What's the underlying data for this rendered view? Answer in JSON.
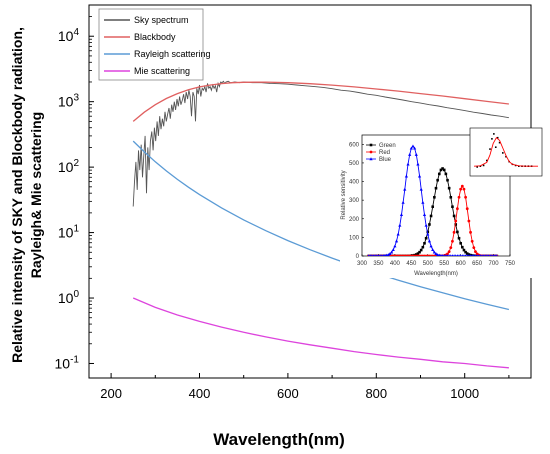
{
  "chart_data": [
    {
      "type": "line",
      "xlabel": "Wavelength(nm)",
      "ylabel_lines": [
        "Relative intensity of SKY and Blockbody radiation,",
        "Rayleigh& Mie scattering"
      ],
      "xlim": [
        150,
        1150
      ],
      "ylim": [
        0.06,
        30000
      ],
      "yscale": "log",
      "xticks": [
        "200",
        "400",
        "600",
        "800",
        "1000"
      ],
      "xtick_values": [
        200,
        400,
        600,
        800,
        1000
      ],
      "yticks": [
        {
          "base": "10",
          "exp": "-1",
          "value": 0.1
        },
        {
          "base": "10",
          "exp": "0",
          "value": 1
        },
        {
          "base": "10",
          "exp": "1",
          "value": 10
        },
        {
          "base": "10",
          "exp": "2",
          "value": 100
        },
        {
          "base": "10",
          "exp": "3",
          "value": 1000
        },
        {
          "base": "10",
          "exp": "4",
          "value": 10000
        }
      ],
      "legend_position": "top-left",
      "series": [
        {
          "name": "Sky spectrum",
          "color": "#555555",
          "x": [
            250,
            253,
            256,
            259,
            262,
            265,
            268,
            271,
            274,
            277,
            280,
            283,
            286,
            289,
            292,
            295,
            298,
            301,
            304,
            307,
            310,
            313,
            316,
            319,
            322,
            325,
            328,
            331,
            334,
            337,
            340,
            343,
            346,
            349,
            352,
            355,
            358,
            361,
            364,
            367,
            370,
            373,
            376,
            379,
            382,
            385,
            388,
            391,
            394,
            397,
            400,
            403,
            406,
            409,
            412,
            415,
            418,
            421,
            424,
            427,
            430,
            433,
            436,
            439,
            442,
            445,
            448,
            451,
            454,
            457,
            460,
            465,
            470,
            480,
            490,
            500,
            520,
            540,
            560,
            580,
            600,
            620,
            640,
            660,
            680,
            700,
            720,
            740,
            760,
            780,
            800,
            820,
            840,
            860,
            880,
            900,
            920,
            940,
            960,
            980,
            1000,
            1020,
            1040,
            1060,
            1080,
            1100
          ],
          "y": [
            25,
            60,
            120,
            45,
            180,
            90,
            220,
            70,
            150,
            300,
            40,
            200,
            90,
            250,
            350,
            180,
            400,
            250,
            500,
            300,
            600,
            380,
            550,
            420,
            700,
            500,
            650,
            800,
            550,
            900,
            700,
            1000,
            750,
            1100,
            850,
            1200,
            900,
            1050,
            1300,
            950,
            1400,
            1100,
            1500,
            1200,
            600,
            1400,
            1200,
            500,
            1600,
            1300,
            1800,
            1200,
            1600,
            1500,
            1700,
            1400,
            1900,
            1600,
            1700,
            1500,
            1800,
            1600,
            1750,
            1400,
            1900,
            1700,
            2000,
            1950,
            2050,
            1900,
            2000,
            2050,
            1950,
            2000,
            1950,
            2000,
            1950,
            1950,
            1900,
            1880,
            1850,
            1800,
            1750,
            1700,
            1650,
            1580,
            1500,
            1450,
            1380,
            1300,
            1250,
            1180,
            1120,
            1060,
            1000,
            950,
            900,
            860,
            810,
            770,
            730,
            690,
            660,
            625,
            600,
            570
          ]
        },
        {
          "name": "Blackbody",
          "color": "#e06060",
          "x": [
            250,
            275,
            300,
            325,
            350,
            375,
            400,
            425,
            450,
            475,
            500,
            550,
            600,
            650,
            700,
            750,
            800,
            850,
            900,
            950,
            1000,
            1050,
            1100
          ],
          "y": [
            500,
            690,
            900,
            1120,
            1330,
            1520,
            1680,
            1800,
            1890,
            1950,
            1980,
            1990,
            1950,
            1880,
            1790,
            1680,
            1560,
            1450,
            1330,
            1220,
            1110,
            1010,
            920
          ]
        },
        {
          "name": "Rayleigh scattering",
          "color": "#5b9bd5",
          "x": [
            250,
            275,
            300,
            325,
            350,
            375,
            400,
            450,
            500,
            550,
            600,
            650,
            700,
            750,
            800,
            850,
            900,
            950,
            1000,
            1050,
            1100
          ],
          "y": [
            250,
            171,
            120.6,
            87.5,
            65,
            49.4,
            38.1,
            23.8,
            15.6,
            10.7,
            7.53,
            5.47,
            4.07,
            3.09,
            2.38,
            1.87,
            1.49,
            1.2,
            0.977,
            0.803,
            0.667
          ]
        },
        {
          "name": "Mie scattering",
          "color": "#dd44dd",
          "x": [
            250,
            300,
            350,
            400,
            450,
            500,
            550,
            600,
            650,
            700,
            750,
            800,
            850,
            900,
            950,
            1000,
            1050,
            1100
          ],
          "y": [
            1.0,
            0.72,
            0.55,
            0.44,
            0.36,
            0.3,
            0.255,
            0.22,
            0.193,
            0.171,
            0.152,
            0.137,
            0.125,
            0.116,
            0.106,
            0.1,
            0.092,
            0.086
          ]
        }
      ]
    },
    {
      "type": "line",
      "ylabel": "Relative sensitivity",
      "xlabel": "Wavelength(nm)",
      "xlim": [
        300,
        750
      ],
      "ylim": [
        0,
        650
      ],
      "xticks": [
        "300",
        "350",
        "400",
        "450",
        "500",
        "550",
        "600",
        "650",
        "700",
        "750"
      ],
      "xtick_values": [
        300,
        350,
        400,
        450,
        500,
        550,
        600,
        650,
        700,
        750
      ],
      "yticks": [
        "0",
        "100",
        "200",
        "300",
        "400",
        "500",
        "600"
      ],
      "ytick_values": [
        0,
        100,
        200,
        300,
        400,
        500,
        600
      ],
      "legend_position": "top-left",
      "series": [
        {
          "name": "Green",
          "color": "#000000",
          "marker": "square",
          "mean": 545,
          "sd": 28,
          "peak": 470
        },
        {
          "name": "Red",
          "color": "#ff0000",
          "marker": "circle",
          "mean": 605,
          "sd": 17,
          "peak": 375
        },
        {
          "name": "Blue",
          "color": "#0000ff",
          "marker": "triangle",
          "mean": 455,
          "sd": 25,
          "peak": 590
        }
      ],
      "x_start": 320,
      "x_end": 710,
      "x_step": 5
    },
    {
      "type": "scatter",
      "series": [
        {
          "name": "",
          "color": "#000000",
          "marker": "square",
          "x": [
            0.05,
            0.1,
            0.15,
            0.2,
            0.25,
            0.28,
            0.31,
            0.34,
            0.37,
            0.4,
            0.45,
            0.5,
            0.55,
            0.6,
            0.65,
            0.7,
            0.75,
            0.8,
            0.85,
            0.9
          ],
          "y": [
            0.08,
            0.1,
            0.12,
            0.25,
            0.55,
            0.82,
            0.95,
            0.6,
            0.85,
            0.72,
            0.45,
            0.35,
            0.22,
            0.15,
            0.12,
            0.1,
            0.1,
            0.1,
            0.1,
            0.1
          ]
        },
        {
          "name": "",
          "color": "#ff0000",
          "marker": "line",
          "x": [
            0.0,
            0.1,
            0.2,
            0.25,
            0.3,
            0.35,
            0.4,
            0.45,
            0.5,
            0.55,
            0.6,
            0.7,
            0.8,
            0.9,
            1.0
          ],
          "y": [
            0.1,
            0.11,
            0.2,
            0.4,
            0.7,
            0.85,
            0.78,
            0.58,
            0.38,
            0.22,
            0.15,
            0.11,
            0.1,
            0.1,
            0.1
          ]
        }
      ]
    }
  ]
}
